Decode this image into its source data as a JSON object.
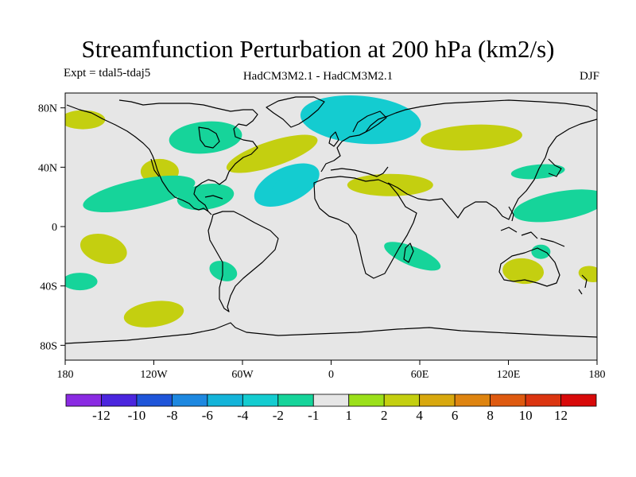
{
  "title": "Streamfunction Perturbation at 200 hPa (km2/s)",
  "subtitle_left": "Expt = tdal5-tdaj5",
  "subtitle_center": "HadCM3M2.1 - HadCM3M2.1",
  "subtitle_right": "DJF",
  "map": {
    "lat_ticks": [
      "80N",
      "40N",
      "0",
      "40S",
      "80S"
    ],
    "lon_ticks": [
      "180",
      "120W",
      "60W",
      "0",
      "60E",
      "120E",
      "180"
    ],
    "background_color": "#e6e6e6",
    "anomalies": [
      {
        "name": "anomaly-north-pacific-pos",
        "lon": -168,
        "lat": 72,
        "value": 2
      },
      {
        "name": "anomaly-canada-neg",
        "lon": -85,
        "lat": 60,
        "value": -1.5
      },
      {
        "name": "anomaly-us-west-pos",
        "lon": -116,
        "lat": 37,
        "value": 3
      },
      {
        "name": "anomaly-pacific-band-neg",
        "lon": -130,
        "lat": 22,
        "value": -1.5
      },
      {
        "name": "anomaly-caribbean-neg",
        "lon": -85,
        "lat": 20,
        "value": -2
      },
      {
        "name": "anomaly-north-atlantic-pos",
        "lon": -40,
        "lat": 49,
        "value": 2
      },
      {
        "name": "anomaly-atlantic-neg",
        "lon": -30,
        "lat": 28,
        "value": -3.5
      },
      {
        "name": "anomaly-europe-arctic-neg",
        "lon": 20,
        "lat": 72,
        "value": -3
      },
      {
        "name": "anomaly-siberia-pos",
        "lon": 95,
        "lat": 60,
        "value": 2
      },
      {
        "name": "anomaly-middle-east-pos",
        "lon": 40,
        "lat": 28,
        "value": 2
      },
      {
        "name": "anomaly-japan-neg",
        "lon": 140,
        "lat": 37,
        "value": -1.5
      },
      {
        "name": "anomaly-west-pacific-neg",
        "lon": 155,
        "lat": 14,
        "value": -1.5
      },
      {
        "name": "anomaly-south-pacific-pos",
        "lon": -154,
        "lat": -15,
        "value": 2
      },
      {
        "name": "anomaly-south-america-neg",
        "lon": -73,
        "lat": -30,
        "value": -1.5
      },
      {
        "name": "anomaly-se-pacific-neg",
        "lon": -170,
        "lat": -37,
        "value": -1.5
      },
      {
        "name": "anomaly-madagascar-neg",
        "lon": 55,
        "lat": -20,
        "value": -1.5
      },
      {
        "name": "anomaly-australia-pos",
        "lon": 130,
        "lat": -30,
        "value": 2
      },
      {
        "name": "anomaly-australia-neg",
        "lon": 142,
        "lat": -17,
        "value": -2
      },
      {
        "name": "anomaly-new-zealand-pos",
        "lon": 176,
        "lat": -32,
        "value": 2
      },
      {
        "name": "anomaly-southern-ocean-pos",
        "lon": -120,
        "lat": -59,
        "value": 2
      }
    ]
  },
  "colorbar": {
    "colors": [
      "#8a2be2",
      "#4b26de",
      "#1f55d9",
      "#1e88e0",
      "#14b4d9",
      "#14ccd0",
      "#16d49a",
      "#e6e6e6",
      "#9be01a",
      "#c4cf10",
      "#d8a80e",
      "#de8410",
      "#de5a10",
      "#db3510",
      "#d80a0a"
    ],
    "labels": [
      "-12",
      "-10",
      "-8",
      "-6",
      "-4",
      "-2",
      "-1",
      "1",
      "2",
      "4",
      "6",
      "8",
      "10",
      "12"
    ]
  }
}
